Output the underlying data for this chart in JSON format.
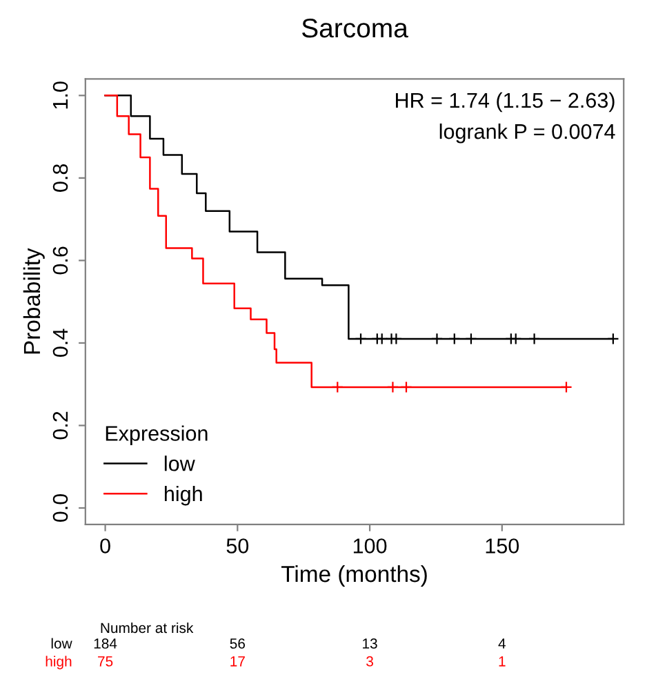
{
  "chart_data": {
    "type": "step",
    "title": "Sarcoma",
    "xlabel": "Time (months)",
    "ylabel": "Probability",
    "legend_title": "Expression",
    "series": [
      {
        "name": "low",
        "color": "#000000",
        "x": [
          0,
          9.7,
          16.9,
          22,
          29,
          34.6,
          38,
          47,
          57.5,
          68,
          82,
          92,
          192
        ],
        "values": [
          1.0,
          0.95,
          0.895,
          0.856,
          0.81,
          0.763,
          0.72,
          0.67,
          0.62,
          0.556,
          0.54,
          0.41,
          0.41
        ]
      },
      {
        "name": "high",
        "color": "#ff0000",
        "x": [
          0,
          4.5,
          8.9,
          13.3,
          16.9,
          20,
          23,
          32.8,
          37,
          48.8,
          55,
          61,
          64,
          64.7,
          78,
          174.3
        ],
        "values": [
          1.0,
          0.95,
          0.906,
          0.85,
          0.774,
          0.708,
          0.63,
          0.605,
          0.544,
          0.484,
          0.457,
          0.424,
          0.385,
          0.352,
          0.293,
          0.293
        ]
      },
      {
        "type": "scatter",
        "marker": "cross",
        "color": "#000000",
        "x": [
          96.6,
          102.8,
          104.6,
          108.2,
          110,
          125.4,
          132,
          138.3,
          153.4,
          155.2,
          162.2,
          192
        ],
        "values": [
          0.41,
          0.41,
          0.41,
          0.41,
          0.41,
          0.41,
          0.41,
          0.41,
          0.41,
          0.41,
          0.41,
          0.41
        ]
      },
      {
        "type": "scatter",
        "marker": "cross",
        "color": "#ff0000",
        "x": [
          87.8,
          108.7,
          113.8,
          174.3
        ],
        "values": [
          0.293,
          0.293,
          0.293,
          0.293
        ]
      }
    ],
    "xlim": [
      -7.5,
      196
    ],
    "ylim": [
      -0.04,
      1.04
    ],
    "xticks": [
      0,
      50,
      100,
      150
    ],
    "yticks": [
      {
        "value": 0,
        "label": "0.0"
      },
      0.2,
      0.4,
      0.6,
      0.8,
      {
        "value": 1,
        "label": "1.0"
      }
    ],
    "grid": false,
    "legend": "bottom left",
    "marker": "none",
    "line_style": "solid",
    "annotations": [
      "HR = 1.74 (1.15 − 2.63)",
      "logrank P = 0.0074",
      "Number at risk",
      "low",
      "184",
      "56",
      "13",
      "4",
      "high",
      "75",
      "17",
      "3",
      "1"
    ]
  }
}
